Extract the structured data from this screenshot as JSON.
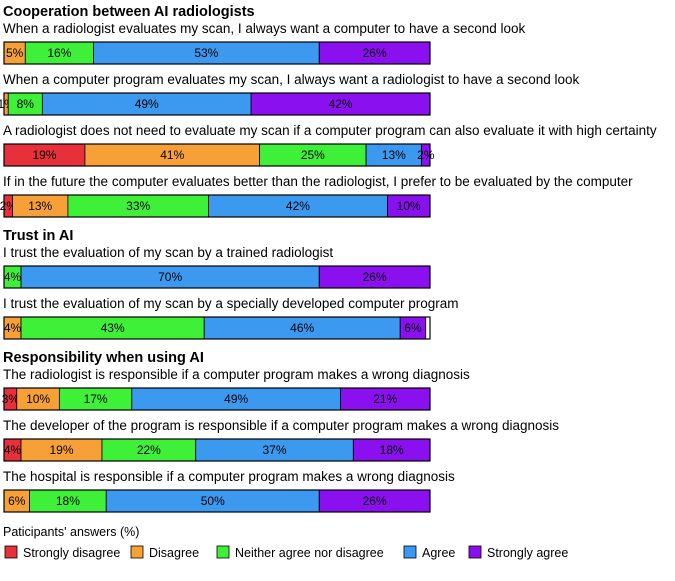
{
  "colors": {
    "strongly_disagree": "#e8303a",
    "disagree": "#f7a037",
    "neutral": "#3ff038",
    "agree": "#3b99f0",
    "strongly_agree": "#8a10f0"
  },
  "chart_data": {
    "type": "bar",
    "orientation": "horizontal",
    "stacked": true,
    "percent_stacked": true,
    "categories_order": [
      "Strongly disagree",
      "Disagree",
      "Neither agree nor disagree",
      "Agree",
      "Strongly agree"
    ],
    "sections": [
      {
        "title": "Cooperation between AI radiologists",
        "questions": [
          {
            "text": "When a radiologist evaluates my scan, I always want a computer to have a second look",
            "values": [
              0,
              5,
              16,
              53,
              26
            ]
          },
          {
            "text": "When a computer program evaluates my scan, I always want a radiologist to have a second look",
            "values": [
              0,
              1,
              8,
              49,
              42
            ]
          },
          {
            "text": "A radiologist does not need to evaluate my scan if a computer program can also evaluate it with high certainty",
            "values": [
              19,
              41,
              25,
              13,
              2
            ]
          },
          {
            "text": "If in the future the computer evaluates better than the radiologist, I prefer to be evaluated by the computer",
            "values": [
              2,
              13,
              33,
              42,
              10
            ]
          }
        ]
      },
      {
        "title": "Trust in AI",
        "questions": [
          {
            "text": "I trust the evaluation of my scan by a trained radiologist",
            "values": [
              0,
              0,
              4,
              70,
              26
            ]
          },
          {
            "text": "I trust the evaluation of my scan by a specially developed computer program",
            "values": [
              0,
              4,
              43,
              46,
              6
            ]
          }
        ]
      },
      {
        "title": "Responsibility when using AI",
        "questions": [
          {
            "text": "The radiologist is responsible if a computer program makes a wrong diagnosis",
            "values": [
              3,
              10,
              17,
              49,
              21
            ]
          },
          {
            "text": "The developer of the program is responsible if a computer program makes a wrong diagnosis",
            "values": [
              4,
              19,
              22,
              37,
              18
            ]
          },
          {
            "text": "The hospital is responsible if a computer program makes a wrong diagnosis",
            "values": [
              0,
              6,
              18,
              50,
              26
            ]
          }
        ]
      }
    ],
    "legend": {
      "title": "Paticipants' answers (%)",
      "placement": "bottom",
      "entries": [
        "Strongly disagree",
        "Disagree",
        "Neither agree nor disagree",
        "Agree",
        "Strongly agree"
      ]
    },
    "xlim": [
      0,
      100
    ],
    "grid": false
  }
}
